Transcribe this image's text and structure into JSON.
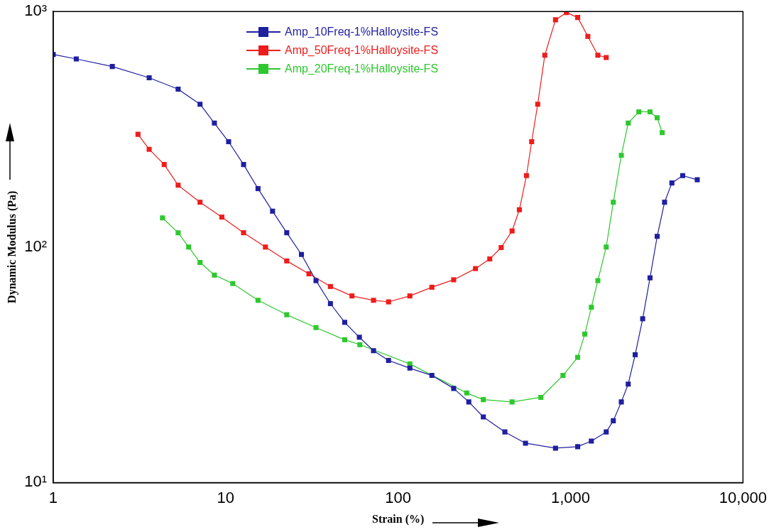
{
  "chart_data": {
    "type": "line",
    "xlabel": "Strain (%)",
    "ylabel": "Dynamic Modulus (Pa)",
    "log": "xy",
    "marker": "square",
    "line_style": "solid",
    "grid": false,
    "legend": "top",
    "xlim": [
      1,
      10000
    ],
    "xticks": [
      1,
      10,
      100,
      {
        "value": 1000,
        "label": "1,000"
      },
      {
        "value": 10000,
        "label": "10,000"
      }
    ],
    "ylim": [
      10,
      1000
    ],
    "yticks": [
      {
        "value": 10,
        "label": "10¹"
      },
      {
        "value": 100,
        "label": "10²"
      },
      {
        "value": 1000,
        "label": "10³"
      }
    ],
    "series": [
      {
        "name": "Amp_10Freq-1%Halloysite-FS",
        "color": "#1f1fa0",
        "x": [
          1,
          1.36,
          2.2,
          3.6,
          5.3,
          7.1,
          8.6,
          10.4,
          12.7,
          15.4,
          18.7,
          22.6,
          27.5,
          33.4,
          40.5,
          49,
          59.6,
          72,
          88,
          117,
          157,
          210,
          257,
          312,
          416,
          548,
          818,
          1100,
          1320,
          1610,
          1770,
          1970,
          2160,
          2370,
          2620,
          2890,
          3180,
          3510,
          3870,
          4470,
          5430
        ],
        "values": [
          657,
          629,
          584,
          523,
          468,
          404,
          336,
          280,
          224,
          177,
          142,
          115,
          93,
          72,
          57.5,
          47.9,
          41.4,
          36.3,
          33,
          30.6,
          28.5,
          25.1,
          22,
          19,
          16.4,
          14.7,
          14,
          14.2,
          15,
          16.4,
          18.3,
          22,
          26.2,
          34.9,
          49.6,
          74,
          111,
          155,
          187,
          201,
          193
        ]
      },
      {
        "name": "Amp_50Freq-1%Halloysite-FS",
        "color": "#ee1c1c",
        "x": [
          3.1,
          3.6,
          4.4,
          5.3,
          7.1,
          9.5,
          12.7,
          17,
          22.6,
          30.4,
          40.5,
          54,
          72,
          88,
          117,
          157,
          210,
          281,
          340,
          396,
          458,
          505,
          555,
          595,
          645,
          709,
          818,
          947,
          1100,
          1260,
          1440,
          1610
        ],
        "values": [
          301,
          260,
          224,
          183,
          155,
          134,
          115,
          100,
          87.3,
          77,
          68,
          62,
          59.4,
          58.5,
          62,
          67.5,
          72.6,
          81,
          89,
          99.5,
          117,
          144,
          201,
          280,
          404,
          652,
          922,
          990,
          943,
          784,
          652,
          638
        ]
      },
      {
        "name": "Amp_20Freq-1%Halloysite-FS",
        "color": "#2ec82e",
        "x": [
          4.3,
          5.3,
          6.1,
          7.1,
          8.6,
          11,
          15.4,
          22.6,
          33.4,
          49,
          60,
          117,
          250,
          312,
          458,
          673,
          904,
          1100,
          1210,
          1320,
          1440,
          1610,
          1770,
          1970,
          2160,
          2490,
          2890,
          3180,
          3400
        ],
        "values": [
          133,
          115,
          100,
          86,
          76,
          70,
          59.4,
          51.6,
          45.5,
          40.4,
          38.5,
          31.9,
          24,
          22.5,
          22,
          23,
          28.5,
          34,
          42.7,
          55.5,
          72,
          100,
          155,
          245,
          336,
          375,
          375,
          354,
          306
        ]
      }
    ]
  }
}
